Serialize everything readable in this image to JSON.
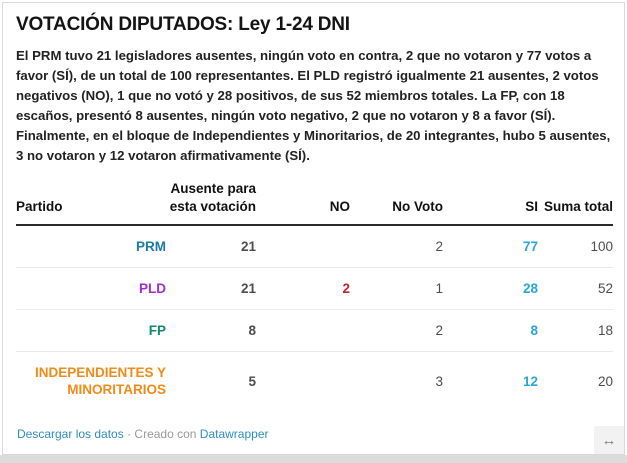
{
  "card": {
    "title": "VOTACIÓN DIPUTADOS: Ley 1-24 DNI",
    "description": "El PRM tuvo 21 legisladores ausentes, ningún voto en contra, 2 que no votaron y 77 votos a favor (SÍ), de un total de 100 representantes. El PLD registró igualmente 21 ausentes, 2 votos negativos (NO), 1 que no votó y 28 positivos, de sus 52 miembros totales. La FP, con 18 escaños, presentó 8 ausentes, ningún voto negativo, 2 que no votaron y 8 a favor (SÍ). Finalmente, en el bloque de Independientes y Minoritarios, de 20 integrantes, hubo 5 ausentes, 3 no votaron y 12 votaron afirmativamente (SÍ)."
  },
  "table": {
    "columns": [
      "Partido",
      "Ausente para esta votación",
      "NO",
      "No Voto",
      "SI",
      "Suma total"
    ],
    "rows": [
      {
        "party": "PRM",
        "party_color": "#1b7ba3",
        "ausente": "21",
        "no": "",
        "no_voto": "2",
        "si": "77",
        "suma": "100"
      },
      {
        "party": "PLD",
        "party_color": "#a32bd0",
        "ausente": "21",
        "no": "2",
        "no_voto": "1",
        "si": "28",
        "suma": "52"
      },
      {
        "party": "FP",
        "party_color": "#0f8a6d",
        "ausente": "8",
        "no": "",
        "no_voto": "2",
        "si": "8",
        "suma": "18"
      },
      {
        "party": "INDEPENDIENTES Y MINORITARIOS",
        "party_color": "#f08b19",
        "ausente": "5",
        "no": "",
        "no_voto": "3",
        "si": "12",
        "suma": "20"
      }
    ]
  },
  "chart_data": {
    "type": "table",
    "title": "VOTACIÓN DIPUTADOS: Ley 1-24 DNI",
    "columns": [
      "Partido",
      "Ausente para esta votación",
      "NO",
      "No Voto",
      "SI",
      "Suma total"
    ],
    "rows": [
      [
        "PRM",
        21,
        null,
        2,
        77,
        100
      ],
      [
        "PLD",
        21,
        2,
        1,
        28,
        52
      ],
      [
        "FP",
        8,
        null,
        2,
        8,
        18
      ],
      [
        "INDEPENDIENTES Y MINORITARIOS",
        5,
        null,
        3,
        12,
        20
      ]
    ]
  },
  "footer": {
    "download_label": "Descargar los datos",
    "separator": "·",
    "credit_prefix": "Creado con",
    "credit_link": "Datawrapper",
    "resize_icon": "↔"
  },
  "colors": {
    "si_value": "#29a7d4",
    "no_value": "#c0232c",
    "link": "#2e8ebf"
  }
}
